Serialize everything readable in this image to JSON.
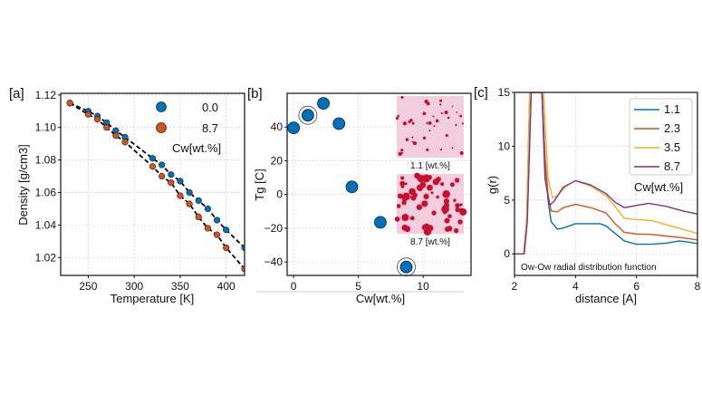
{
  "colors": {
    "blue": "#0072BD",
    "orange": "#D95319",
    "yellow": "#EDB120",
    "purple": "#7E2F8E"
  },
  "chart_data": [
    {
      "panel_label": "[a]",
      "type": "scatter",
      "xlabel": "Temperature [K]",
      "ylabel": "Density [g/cm3]",
      "xlim": [
        220,
        420
      ],
      "ylim": [
        1.009,
        1.121
      ],
      "xticks": [
        250,
        300,
        350,
        400
      ],
      "yticks": [
        1.02,
        1.04,
        1.06,
        1.08,
        1.1,
        1.12
      ],
      "grid": true,
      "legend_title": "Cw[wt.%]",
      "legend_position": "top-right",
      "fit_lines": "dashed black",
      "series": [
        {
          "name": "0.0",
          "color": "#0072BD",
          "x": [
            230,
            250,
            260,
            270,
            280,
            290,
            320,
            330,
            340,
            350,
            360,
            370,
            380,
            390,
            400,
            420
          ],
          "y": [
            1.115,
            1.11,
            1.107,
            1.103,
            1.098,
            1.094,
            1.081,
            1.077,
            1.071,
            1.067,
            1.06,
            1.055,
            1.05,
            1.043,
            1.037,
            1.026
          ]
        },
        {
          "name": "8.7",
          "color": "#D95319",
          "x": [
            230,
            250,
            260,
            270,
            280,
            290,
            320,
            330,
            340,
            350,
            360,
            370,
            380,
            390,
            400,
            420
          ],
          "y": [
            1.115,
            1.108,
            1.105,
            1.1,
            1.095,
            1.091,
            1.076,
            1.07,
            1.066,
            1.058,
            1.053,
            1.045,
            1.038,
            1.034,
            1.026,
            1.013
          ]
        }
      ]
    },
    {
      "panel_label": "[b]",
      "type": "scatter",
      "xlabel": "Cw[wt.%]",
      "ylabel": "Tg [C]",
      "xlim": [
        -0.5,
        13.7
      ],
      "ylim": [
        -48,
        60
      ],
      "xticks": [
        0,
        5,
        10
      ],
      "yticks": [
        -40,
        -20,
        0,
        20,
        40
      ],
      "grid": true,
      "x": [
        0,
        1.1,
        2.3,
        3.5,
        4.5,
        6.7,
        8.7
      ],
      "y": [
        39.5,
        47,
        54,
        42,
        4.5,
        -16.5,
        -43
      ],
      "highlighted_x": [
        1.1,
        8.7
      ],
      "insets": [
        {
          "caption": "1.1 [wt.%]"
        },
        {
          "caption": "8.7 [wt.%]"
        }
      ]
    },
    {
      "panel_label": "[c]",
      "type": "line",
      "xlabel": "distance [A]",
      "ylabel": "g(r)",
      "xlim": [
        2,
        8
      ],
      "ylim": [
        -2,
        15
      ],
      "xticks": [
        2,
        4,
        6,
        8
      ],
      "yticks": [
        0,
        5,
        10,
        15
      ],
      "grid": true,
      "annotation": "Ow-Ow radial distribution function",
      "legend_title": "Cw[wt.%]",
      "legend_position": "top-right",
      "series": [
        {
          "name": "1.1",
          "color": "#0072BD",
          "x": [
            2,
            2.3,
            2.4,
            2.5,
            2.9,
            3.0,
            3.1,
            3.2,
            3.4,
            3.6,
            3.8,
            4.0,
            4.3,
            4.8,
            5.0,
            5.3,
            5.6,
            6.0,
            6.5,
            7.0,
            7.4,
            7.7,
            8.0
          ],
          "y": [
            0,
            0,
            3,
            15,
            15,
            9,
            5,
            3,
            2.3,
            2.4,
            2.6,
            2.8,
            2.8,
            2.8,
            2.6,
            1.9,
            1.2,
            0.9,
            0.9,
            1.0,
            1.2,
            1.1,
            0.95
          ]
        },
        {
          "name": "2.3",
          "color": "#D95319",
          "x": [
            2,
            2.3,
            2.4,
            2.5,
            2.9,
            3.0,
            3.1,
            3.2,
            3.4,
            3.6,
            4.0,
            4.5,
            5.0,
            5.3,
            5.6,
            6.0,
            6.5,
            7.0,
            7.5,
            8.0
          ],
          "y": [
            0,
            0,
            3,
            15,
            15,
            9,
            5.5,
            4,
            3.9,
            4.3,
            4.6,
            4.3,
            3.8,
            2.8,
            2.0,
            1.85,
            1.8,
            1.65,
            1.5,
            1.3
          ]
        },
        {
          "name": "3.5",
          "color": "#EDB120",
          "x": [
            2,
            2.3,
            2.4,
            2.5,
            2.95,
            3.1,
            3.25,
            3.4,
            3.7,
            4.0,
            4.5,
            5.0,
            5.3,
            5.6,
            6.0,
            6.5,
            7.0,
            7.5,
            8.0
          ],
          "y": [
            0,
            0,
            3,
            15,
            15,
            7,
            5.2,
            5.4,
            6.3,
            6.8,
            6.3,
            5.4,
            4.4,
            3.3,
            3.2,
            3.1,
            2.7,
            2.3,
            1.9
          ]
        },
        {
          "name": "8.7",
          "color": "#7E2F8E",
          "x": [
            2,
            2.32,
            2.42,
            2.55,
            2.9,
            3.0,
            3.15,
            3.3,
            3.6,
            4.0,
            4.5,
            5.0,
            5.3,
            5.6,
            6.0,
            6.4,
            7.0,
            7.5,
            8.0
          ],
          "y": [
            0,
            0,
            3,
            15,
            15,
            7,
            4.5,
            4.9,
            6.2,
            6.8,
            6.4,
            5.6,
            4.8,
            4.3,
            4.5,
            4.7,
            4.4,
            4.0,
            3.7
          ]
        }
      ]
    }
  ]
}
